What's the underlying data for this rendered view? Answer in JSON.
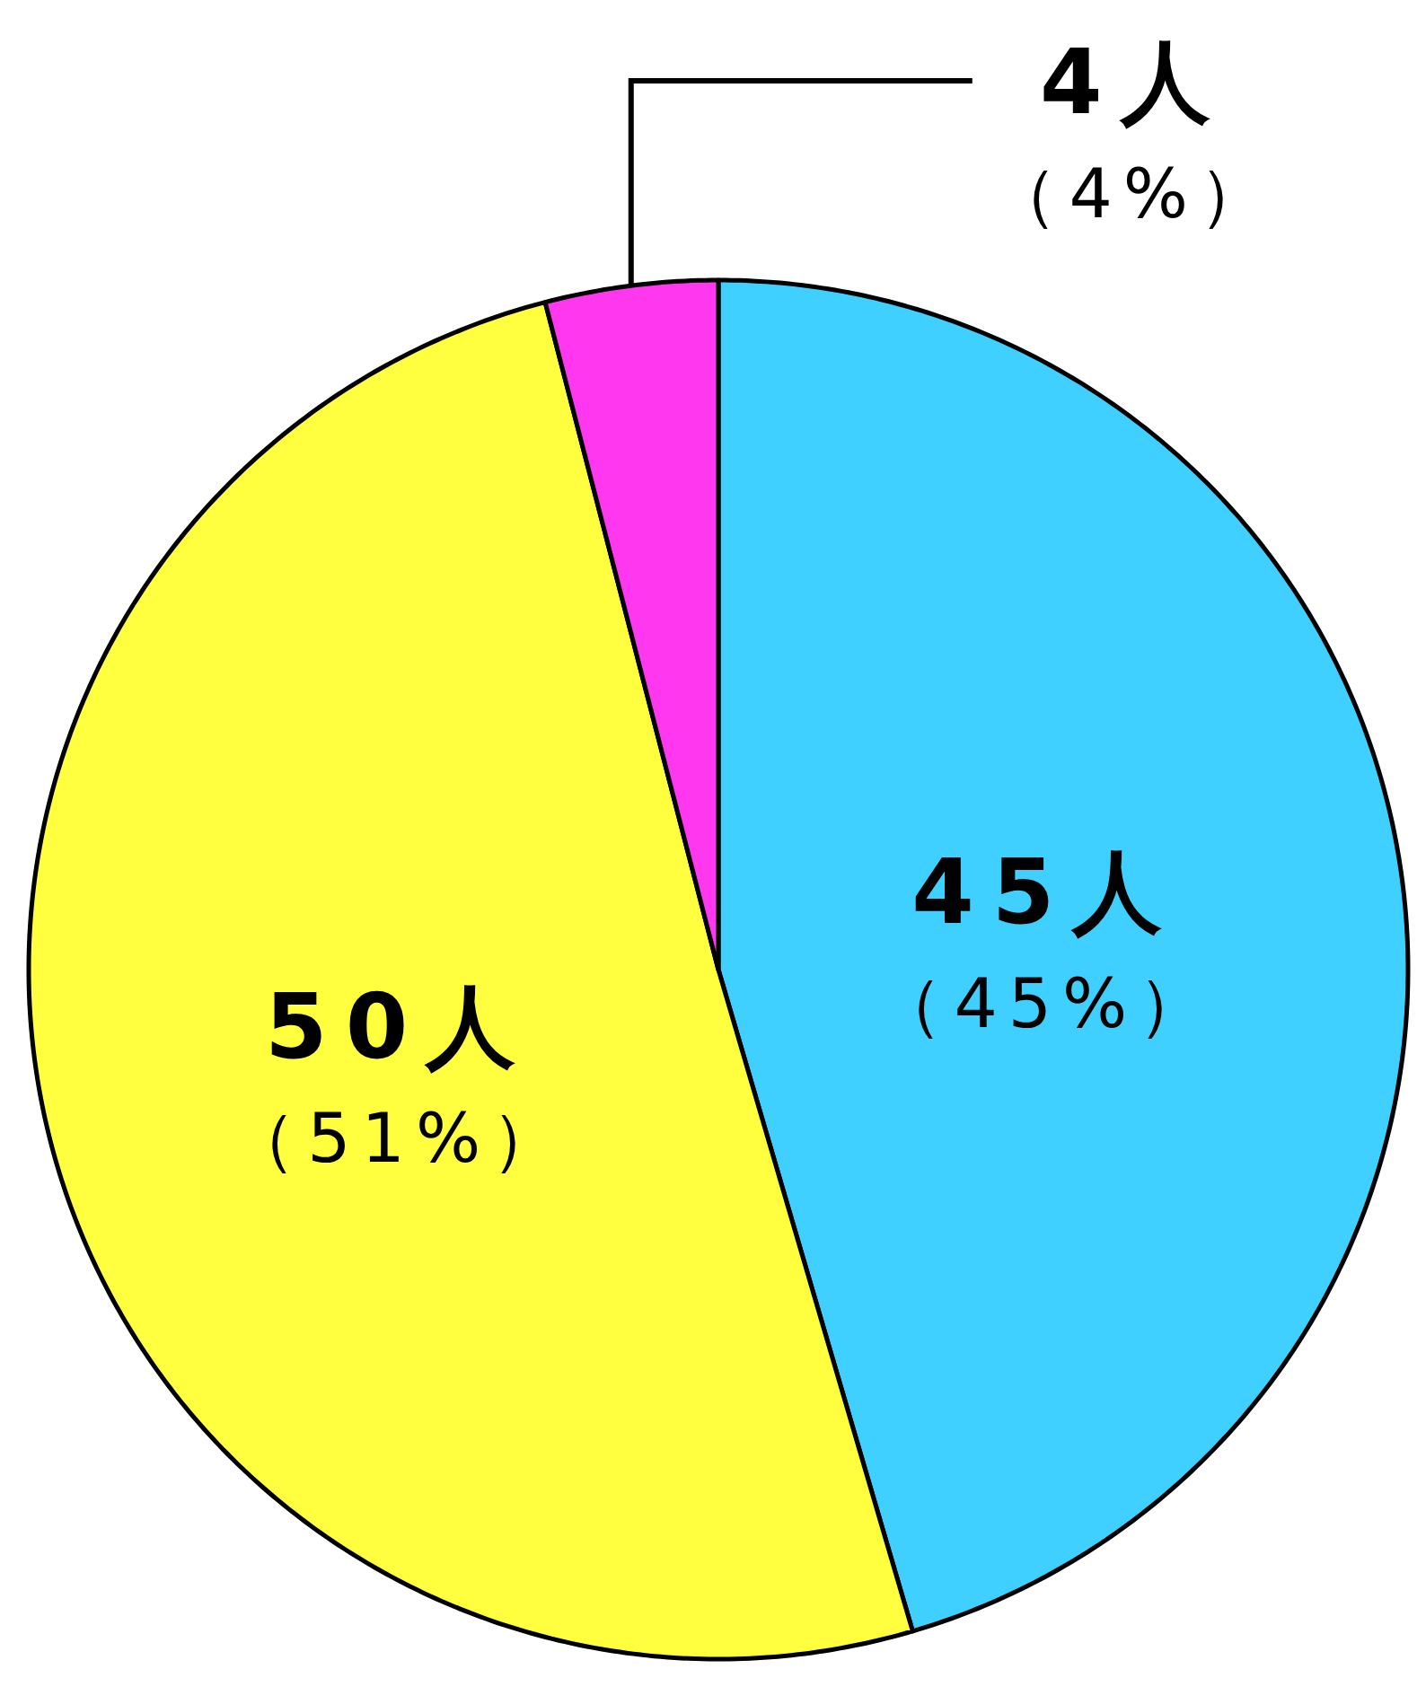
{
  "chart_data": {
    "type": "pie",
    "categories": [
      null,
      null,
      null
    ],
    "values": [
      45,
      50,
      4
    ],
    "colors": [
      "#3fd0ff",
      "#ffff40",
      "#ff38f0"
    ],
    "value_labels": [
      "45人（45%）",
      "50人（51%）",
      "4人（4%）"
    ]
  }
}
